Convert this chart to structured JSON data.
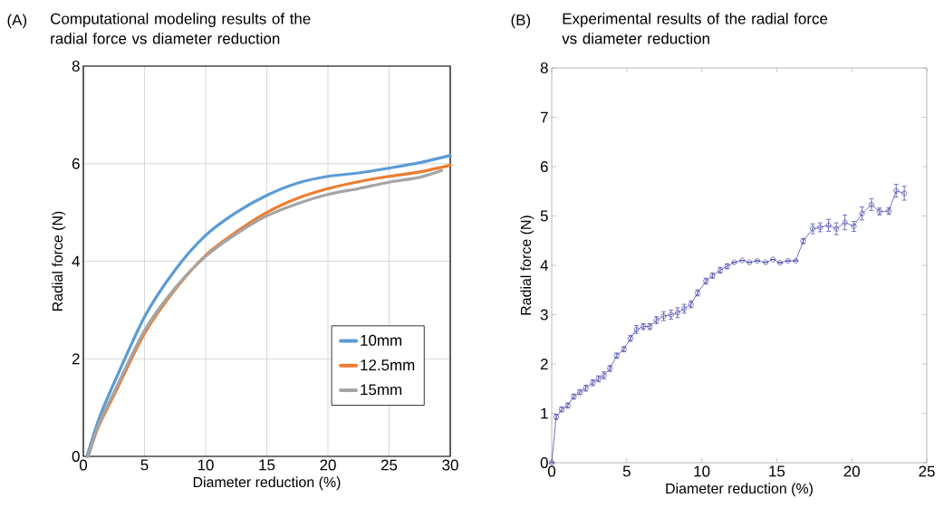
{
  "chart_data": [
    {
      "type": "line",
      "title": "Computational modeling results of the radial force vs diameter reduction",
      "xlabel": "Diameter reduction (%)",
      "ylabel": "Radial force (N)",
      "annotations": [
        "(A)"
      ],
      "xlim": [
        0,
        30
      ],
      "ylim": [
        0,
        8
      ],
      "xticks": [
        0,
        5,
        10,
        15,
        20,
        25,
        30
      ],
      "yticks": [
        0,
        2,
        4,
        6,
        8
      ],
      "grid": true,
      "legend": "bottom right",
      "line_style": "solid",
      "marker": "none",
      "series": [
        {
          "name": "10mm",
          "color": "#5b9bd5",
          "x": [
            0.3,
            1.25,
            2.5,
            5,
            7.5,
            10,
            12.5,
            15,
            17.5,
            20,
            22.5,
            25,
            27.5,
            30
          ],
          "values": [
            0,
            0.75,
            1.5,
            2.86,
            3.82,
            4.53,
            5.0,
            5.35,
            5.6,
            5.74,
            5.81,
            5.91,
            6.02,
            6.17
          ]
        },
        {
          "name": "12.5mm",
          "color": "#ed7d31",
          "x": [
            0.4,
            1.25,
            2.5,
            5,
            7.5,
            10,
            12.5,
            15,
            17.5,
            20,
            22.5,
            25,
            27.5,
            30
          ],
          "values": [
            0,
            0.62,
            1.25,
            2.52,
            3.42,
            4.12,
            4.6,
            5.0,
            5.29,
            5.49,
            5.63,
            5.74,
            5.83,
            5.97
          ]
        },
        {
          "name": "15mm",
          "color": "#a5a5a5",
          "x": [
            0.4,
            1.25,
            2.5,
            5,
            7.5,
            10,
            12.5,
            15,
            17.5,
            20,
            22.5,
            25,
            27.5,
            29.3
          ],
          "values": [
            0,
            0.65,
            1.31,
            2.58,
            3.45,
            4.1,
            4.56,
            4.93,
            5.18,
            5.37,
            5.49,
            5.62,
            5.72,
            5.86
          ]
        }
      ]
    },
    {
      "type": "line",
      "title": "Experimental results of the radial force vs diameter reduction",
      "xlabel": "Diameter reduction (%)",
      "ylabel": "Radial force (N)",
      "annotations": [
        "(B)"
      ],
      "xlim": [
        0,
        25
      ],
      "ylim": [
        0,
        8
      ],
      "xticks": [
        0,
        5,
        10,
        15,
        20,
        25
      ],
      "yticks": [
        0,
        1,
        2,
        3,
        4,
        5,
        6,
        7,
        8
      ],
      "grid": false,
      "marker": "circle",
      "line_style": "solid",
      "series": [
        {
          "color": "#3c3ca8",
          "x": [
            0,
            0.3,
            0.66,
            1.07,
            1.47,
            1.87,
            2.27,
            2.74,
            3.12,
            3.48,
            3.88,
            4.33,
            4.81,
            5.25,
            5.65,
            6.1,
            6.54,
            6.98,
            7.46,
            7.95,
            8.39,
            8.83,
            9.28,
            9.72,
            10.28,
            10.72,
            11.23,
            11.69,
            12.17,
            12.7,
            13.18,
            13.7,
            14.26,
            14.75,
            15.21,
            15.75,
            16.26,
            16.76,
            17.4,
            17.89,
            18.45,
            18.97,
            19.54,
            20.14,
            20.68,
            21.31,
            21.85,
            22.47,
            22.96,
            23.5
          ],
          "values": [
            0,
            0.93,
            1.08,
            1.16,
            1.34,
            1.43,
            1.51,
            1.62,
            1.7,
            1.77,
            1.91,
            2.17,
            2.3,
            2.52,
            2.7,
            2.76,
            2.76,
            2.89,
            2.97,
            3.0,
            3.04,
            3.12,
            3.21,
            3.44,
            3.68,
            3.79,
            3.9,
            3.98,
            4.06,
            4.1,
            4.06,
            4.09,
            4.06,
            4.12,
            4.05,
            4.09,
            4.09,
            4.49,
            4.74,
            4.77,
            4.81,
            4.74,
            4.87,
            4.79,
            5.05,
            5.23,
            5.09,
            5.1,
            5.51,
            5.46
          ],
          "errors": [
            null,
            0.05,
            0.05,
            0.05,
            0.05,
            0.05,
            0.06,
            0.06,
            0.06,
            0.07,
            0.06,
            0.05,
            0.05,
            0.06,
            0.08,
            0.06,
            0.06,
            0.07,
            0.09,
            0.09,
            0.1,
            0.09,
            0.07,
            0.06,
            0.06,
            0.05,
            0.06,
            0.05,
            null,
            null,
            null,
            null,
            null,
            null,
            null,
            null,
            null,
            0.05,
            0.1,
            0.09,
            0.12,
            0.12,
            0.15,
            0.1,
            0.13,
            0.12,
            0.07,
            0.07,
            0.13,
            0.14
          ]
        }
      ]
    }
  ]
}
